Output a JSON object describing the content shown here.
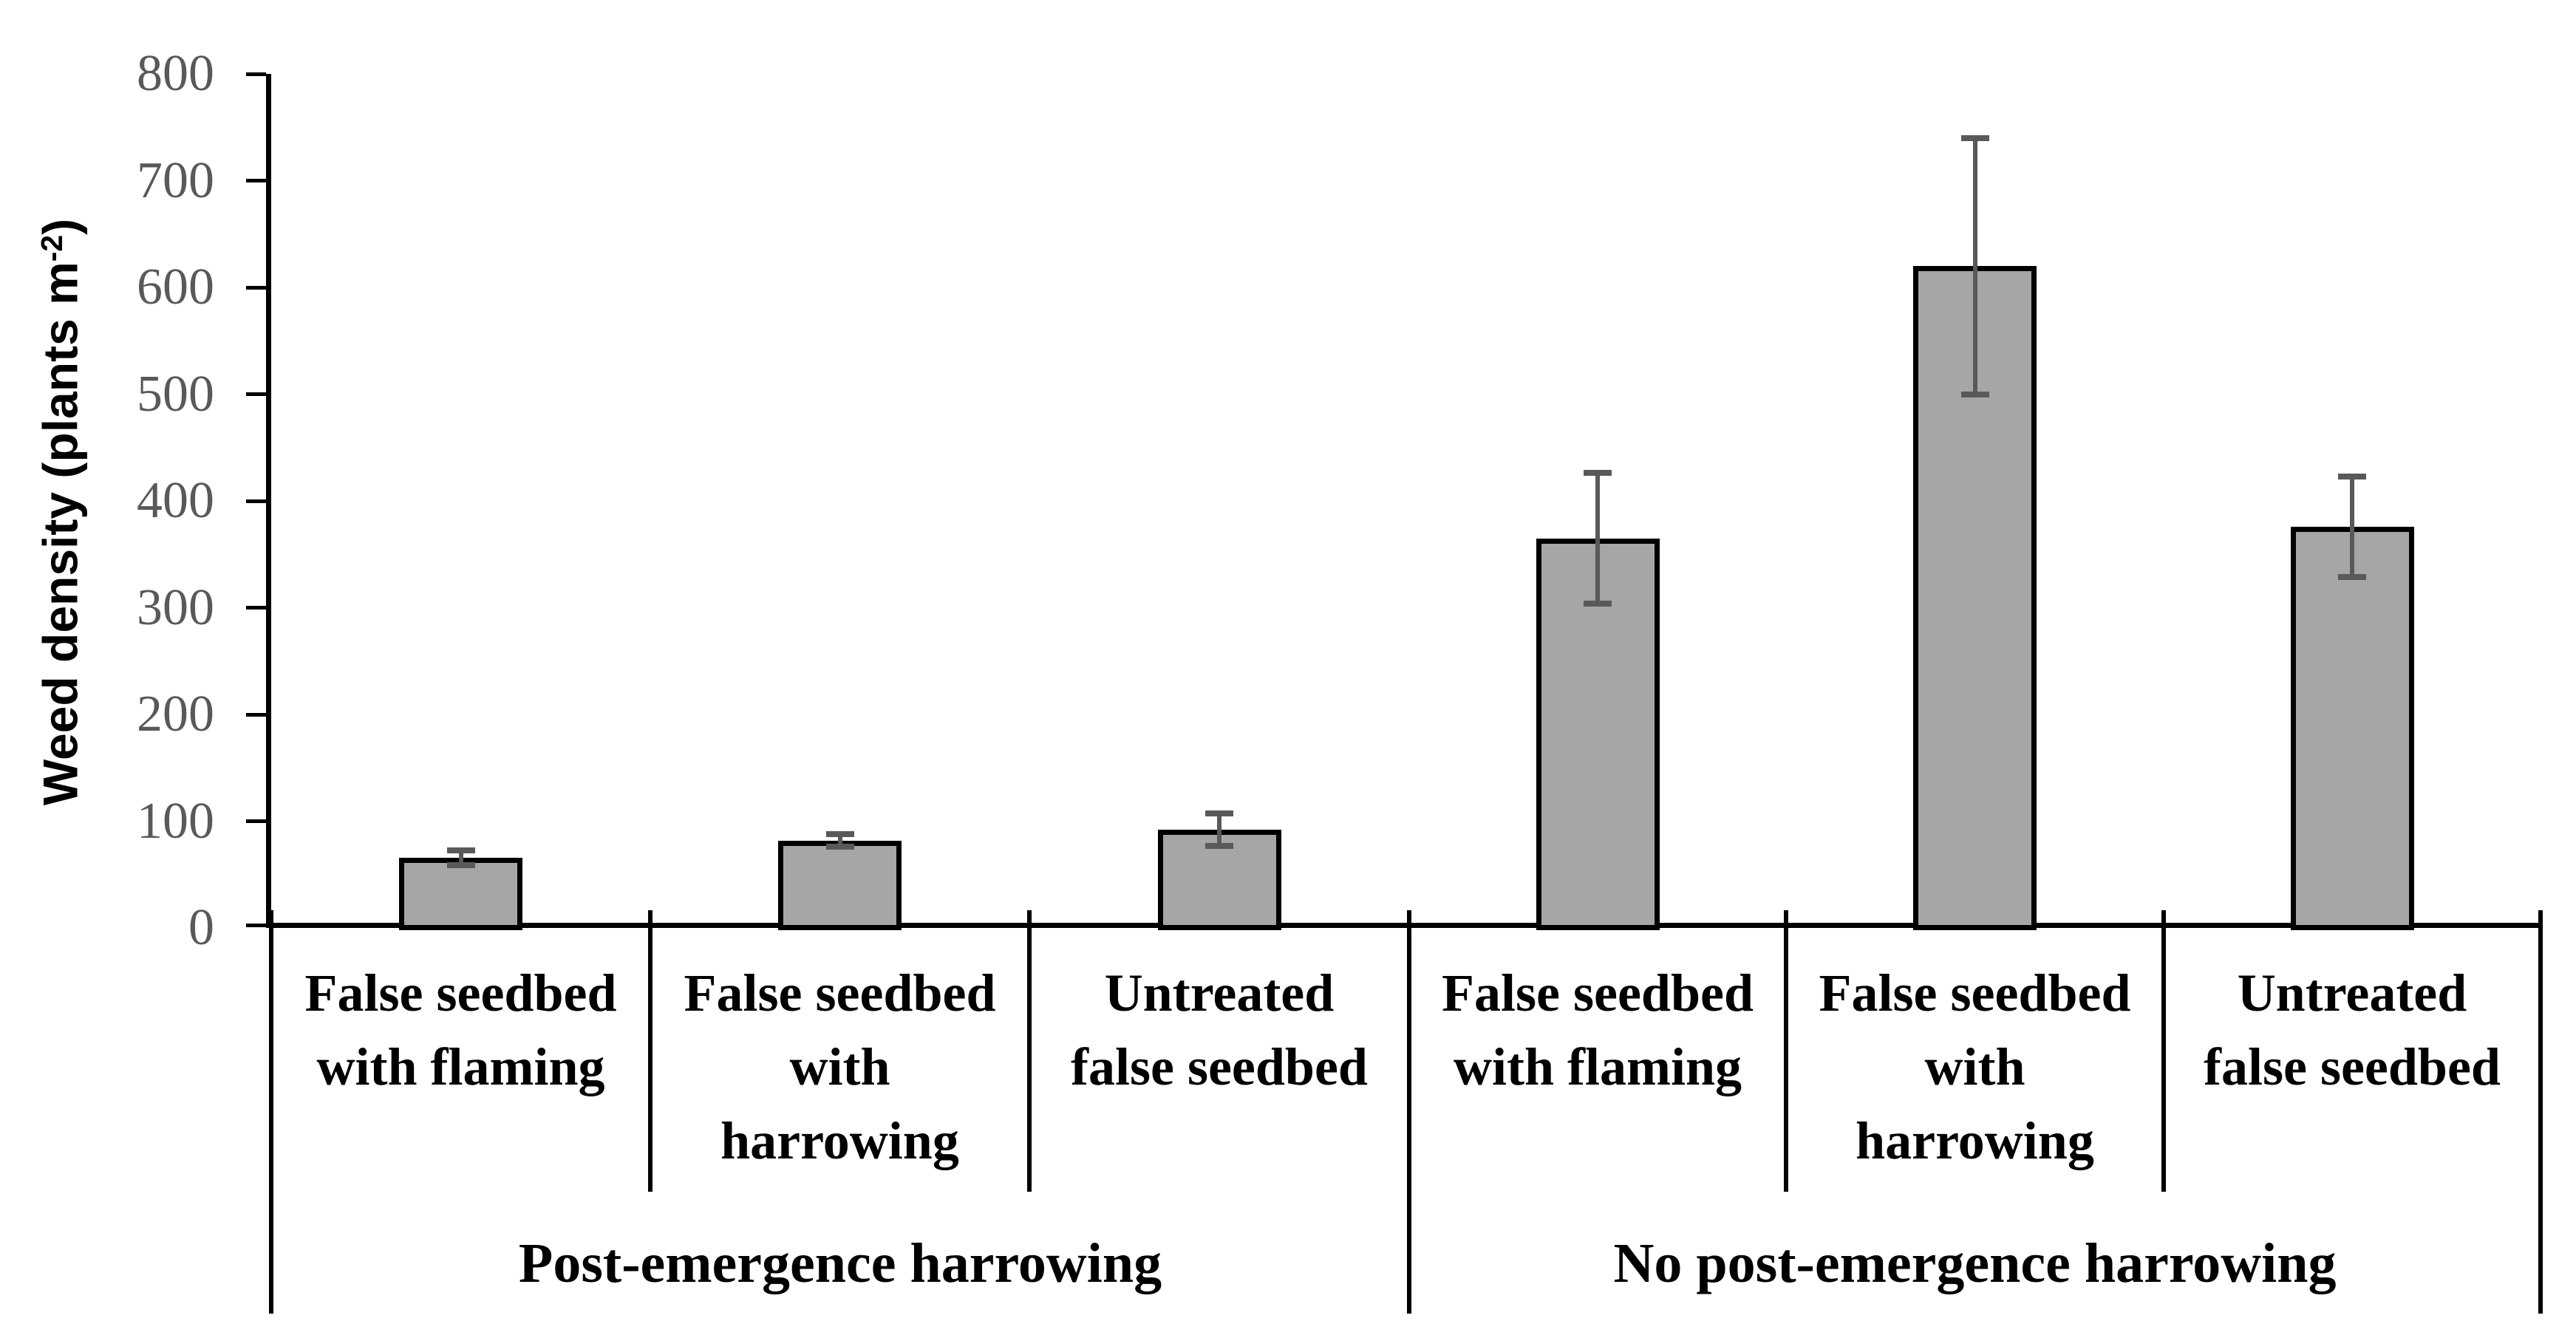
{
  "figure": {
    "ylabel": {
      "main": "Weed density (plants m",
      "sup": "-2",
      "close": ")"
    }
  },
  "chart_data": {
    "type": "bar",
    "title": "",
    "ylabel": "Weed density (plants m⁻²)",
    "xlabel": "",
    "ylim": [
      0,
      800
    ],
    "ytick_step": 100,
    "yticks": [
      0,
      100,
      200,
      300,
      400,
      500,
      600,
      700,
      800
    ],
    "grid": false,
    "legend": false,
    "bar_color": "#a6a6a6",
    "bar_border_color": "#000000",
    "error_bar_color": "#595959",
    "tick_label_color": "#595959",
    "axis_color": "#000000",
    "groups": [
      {
        "label": "Post-emergence harrowing",
        "categories": [
          {
            "label": "False seedbed with flaming",
            "label_lines": [
              "False seedbed",
              "with flaming"
            ],
            "value": 66,
            "error": 7
          },
          {
            "label": "False seedbed with harrowing",
            "label_lines": [
              "False seedbed",
              "with",
              "harrowing"
            ],
            "value": 82,
            "error": 6
          },
          {
            "label": "Untreated false seedbed",
            "label_lines": [
              "Untreated",
              "false seedbed"
            ],
            "value": 92,
            "error": 15
          }
        ]
      },
      {
        "label": "No post-emergence harrowing",
        "categories": [
          {
            "label": "False seedbed with flaming",
            "label_lines": [
              "False seedbed",
              "with flaming"
            ],
            "value": 365,
            "error": 61
          },
          {
            "label": "False seedbed with harrowing",
            "label_lines": [
              "False seedbed",
              "with",
              "harrowing"
            ],
            "value": 620,
            "error": 120
          },
          {
            "label": "Untreated false seedbed",
            "label_lines": [
              "Untreated",
              "false seedbed"
            ],
            "value": 376,
            "error": 47
          }
        ]
      }
    ]
  }
}
